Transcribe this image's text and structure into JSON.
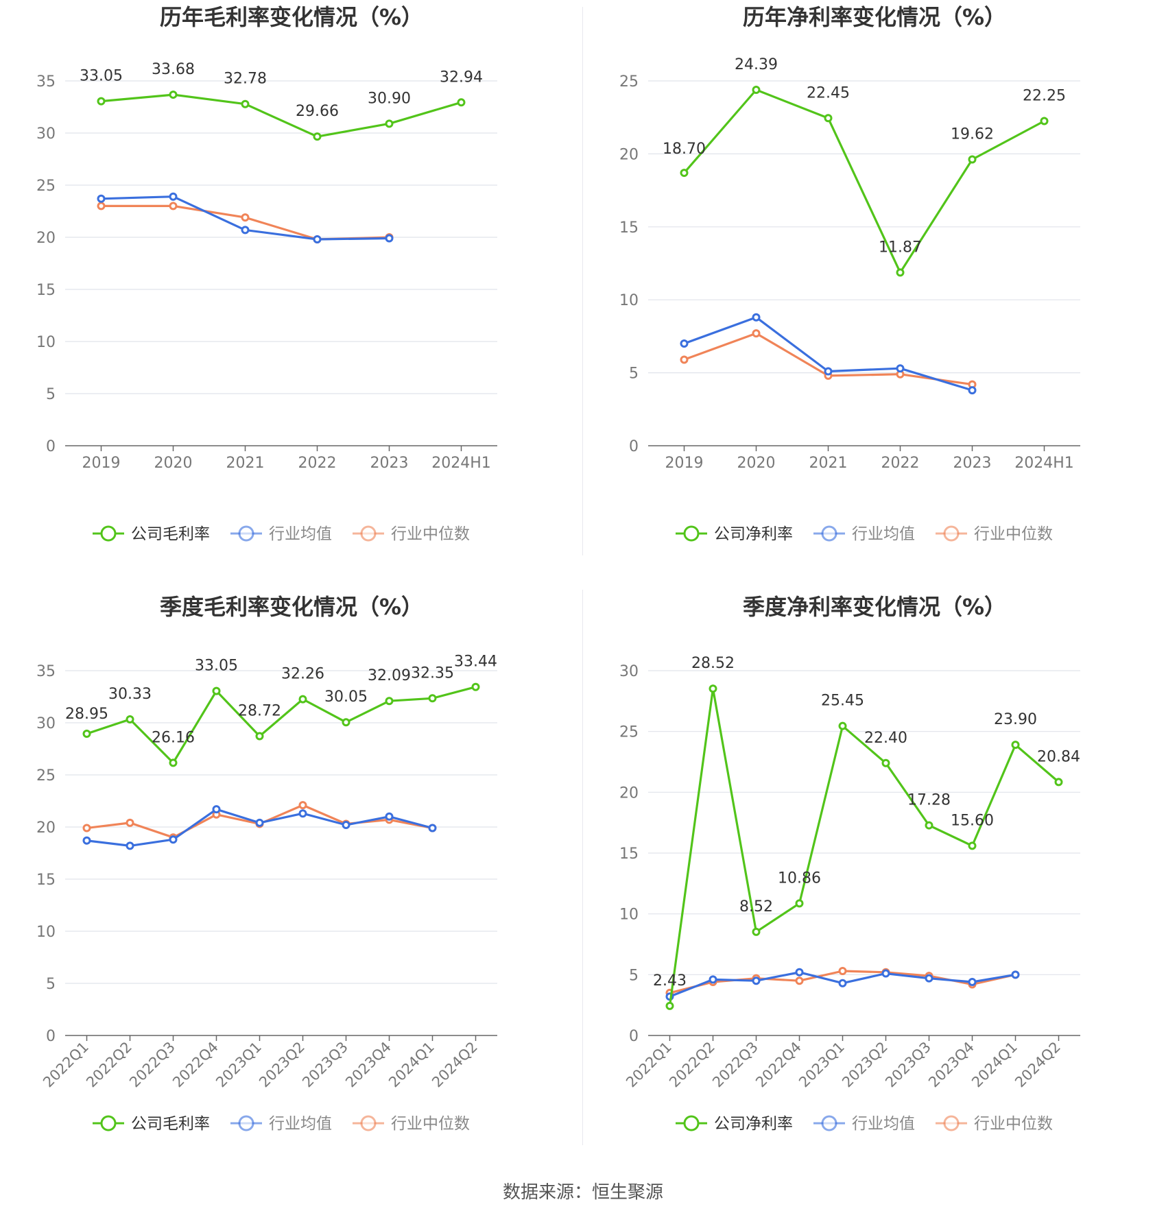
{
  "colors": {
    "company": "#52c41a",
    "avg": "#3a6fde",
    "median": "#f08458",
    "grid": "#e0e3ea",
    "axis": "#666666",
    "label": "#333333",
    "tick": "#777777"
  },
  "legend_icon": "circle-line",
  "source": {
    "label": "数据来源：",
    "name": "恒生聚源"
  },
  "chart_data": [
    {
      "type": "line",
      "title": "历年毛利率变化情况（%）",
      "categories": [
        "2019",
        "2020",
        "2021",
        "2022",
        "2023",
        "2024H1"
      ],
      "ylim": [
        0,
        35
      ],
      "yticks": [
        0,
        5,
        10,
        15,
        20,
        25,
        30,
        35
      ],
      "grid": true,
      "legend_position": "bottom",
      "series": [
        {
          "name": "公司毛利率",
          "role": "company",
          "values": [
            33.05,
            33.68,
            32.78,
            29.66,
            30.9,
            32.94
          ],
          "labels": [
            "33.05",
            "33.68",
            "32.78",
            "29.66",
            "30.90",
            "32.94"
          ]
        },
        {
          "name": "行业均值",
          "role": "avg",
          "values": [
            23.7,
            23.9,
            20.7,
            19.8,
            19.9,
            null
          ]
        },
        {
          "name": "行业中位数",
          "role": "median",
          "values": [
            23.0,
            23.0,
            21.9,
            19.8,
            20.0,
            null
          ]
        }
      ]
    },
    {
      "type": "line",
      "title": "历年净利率变化情况（%）",
      "categories": [
        "2019",
        "2020",
        "2021",
        "2022",
        "2023",
        "2024H1"
      ],
      "ylim": [
        0,
        25
      ],
      "yticks": [
        0,
        5,
        10,
        15,
        20,
        25
      ],
      "grid": true,
      "legend_position": "bottom",
      "series": [
        {
          "name": "公司净利率",
          "role": "company",
          "values": [
            18.7,
            24.39,
            22.45,
            11.87,
            19.62,
            22.25
          ],
          "labels": [
            "18.70",
            "24.39",
            "22.45",
            "11.87",
            "19.62",
            "22.25"
          ]
        },
        {
          "name": "行业均值",
          "role": "avg",
          "values": [
            7.0,
            8.8,
            5.1,
            5.3,
            3.8,
            null
          ]
        },
        {
          "name": "行业中位数",
          "role": "median",
          "values": [
            5.9,
            7.7,
            4.8,
            4.9,
            4.2,
            null
          ]
        }
      ]
    },
    {
      "type": "line",
      "title": "季度毛利率变化情况（%）",
      "categories": [
        "2022Q1",
        "2022Q2",
        "2022Q3",
        "2022Q4",
        "2023Q1",
        "2023Q2",
        "2023Q3",
        "2023Q4",
        "2024Q1",
        "2024Q2"
      ],
      "ylim": [
        0,
        35
      ],
      "yticks": [
        0,
        5,
        10,
        15,
        20,
        25,
        30,
        35
      ],
      "grid": true,
      "legend_position": "bottom",
      "rotated_xticks": true,
      "series": [
        {
          "name": "公司毛利率",
          "role": "company",
          "values": [
            28.95,
            30.33,
            26.16,
            33.05,
            28.72,
            32.26,
            30.05,
            32.09,
            32.35,
            33.44
          ],
          "labels": [
            "28.95",
            "30.33",
            "26.16",
            "33.05",
            "28.72",
            "32.26",
            "30.05",
            "32.09",
            "32.35",
            "33.44"
          ]
        },
        {
          "name": "行业均值",
          "role": "avg",
          "values": [
            18.7,
            18.2,
            18.8,
            21.7,
            20.4,
            21.3,
            20.2,
            21.0,
            19.9,
            null
          ]
        },
        {
          "name": "行业中位数",
          "role": "median",
          "values": [
            19.9,
            20.4,
            19.0,
            21.2,
            20.3,
            22.1,
            20.3,
            20.7,
            19.9,
            null
          ]
        }
      ]
    },
    {
      "type": "line",
      "title": "季度净利率变化情况（%）",
      "categories": [
        "2022Q1",
        "2022Q2",
        "2022Q3",
        "2022Q4",
        "2023Q1",
        "2023Q2",
        "2023Q3",
        "2023Q4",
        "2024Q1",
        "2024Q2"
      ],
      "ylim": [
        0,
        30
      ],
      "yticks": [
        0,
        5,
        10,
        15,
        20,
        25,
        30
      ],
      "grid": true,
      "legend_position": "bottom",
      "rotated_xticks": true,
      "series": [
        {
          "name": "公司净利率",
          "role": "company",
          "values": [
            2.43,
            28.52,
            8.52,
            10.86,
            25.45,
            22.4,
            17.28,
            15.6,
            23.9,
            20.84
          ],
          "labels": [
            "2.43",
            "28.52",
            "8.52",
            "10.86",
            "25.45",
            "22.40",
            "17.28",
            "15.60",
            "23.90",
            "20.84"
          ]
        },
        {
          "name": "行业均值",
          "role": "avg",
          "values": [
            3.2,
            4.6,
            4.5,
            5.2,
            4.3,
            5.1,
            4.7,
            4.4,
            5.0,
            null
          ]
        },
        {
          "name": "行业中位数",
          "role": "median",
          "values": [
            3.5,
            4.4,
            4.7,
            4.5,
            5.3,
            5.2,
            4.9,
            4.2,
            5.0,
            null
          ]
        }
      ]
    }
  ]
}
